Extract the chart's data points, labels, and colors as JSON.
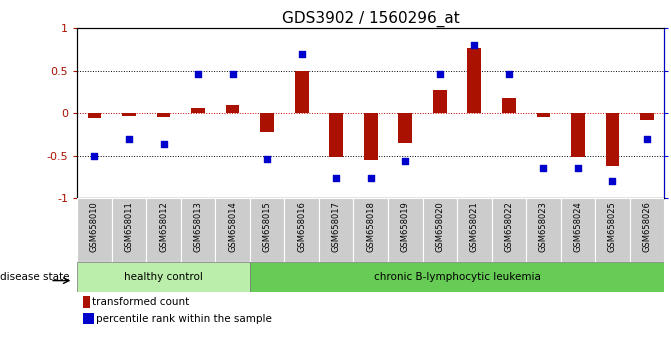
{
  "title": "GDS3902 / 1560296_at",
  "samples": [
    "GSM658010",
    "GSM658011",
    "GSM658012",
    "GSM658013",
    "GSM658014",
    "GSM658015",
    "GSM658016",
    "GSM658017",
    "GSM658018",
    "GSM658019",
    "GSM658020",
    "GSM658021",
    "GSM658022",
    "GSM658023",
    "GSM658024",
    "GSM658025",
    "GSM658026"
  ],
  "red_bars": [
    -0.05,
    -0.03,
    -0.04,
    0.06,
    0.1,
    -0.22,
    0.5,
    -0.52,
    -0.55,
    -0.35,
    0.27,
    0.77,
    0.18,
    -0.04,
    -0.52,
    -0.62,
    -0.08
  ],
  "blue_squares_pct": [
    25,
    35,
    32,
    73,
    73,
    23,
    85,
    12,
    12,
    22,
    73,
    90,
    73,
    18,
    18,
    10,
    35
  ],
  "healthy_n": 5,
  "bar_color": "#aa1100",
  "square_color": "#0000cc",
  "healthy_color": "#bbeeaa",
  "disease_color": "#66cc55",
  "label_bg": "#cccccc",
  "bg_color": "#ffffff",
  "zero_line_color": "#cc0000",
  "dotted_color": "black"
}
